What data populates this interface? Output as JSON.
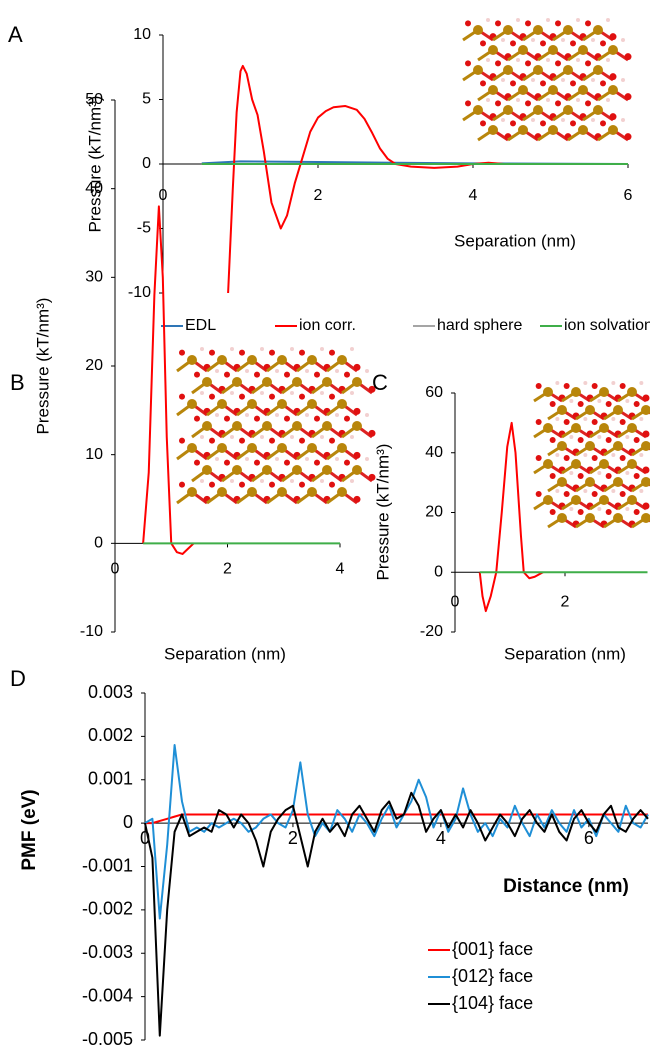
{
  "chart_data": [
    {
      "type": "line",
      "panel_label": "A",
      "ylabel": "Pressure (kT/nm³)",
      "xlabel": "Separation (nm)",
      "xlim": [
        0,
        6
      ],
      "xticks": [
        0,
        2,
        4,
        6
      ],
      "ylim": [
        -10,
        10
      ],
      "yticks": [
        10,
        5,
        0,
        -5,
        -10
      ],
      "series": [
        {
          "name": "EDL",
          "color": "#2e75b6",
          "x": [
            0.5,
            1,
            2,
            3,
            4,
            6
          ],
          "values": [
            0.05,
            0.2,
            0.15,
            0.1,
            0.05,
            0
          ]
        },
        {
          "name": "ion corr.",
          "color": "#ff0000",
          "x": [
            0.84,
            0.9,
            0.95,
            1.0,
            1.03,
            1.08,
            1.15,
            1.22,
            1.3,
            1.4,
            1.52,
            1.6,
            1.7,
            1.8,
            1.9,
            2.0,
            2.1,
            2.2,
            2.35,
            2.5,
            2.6,
            2.7,
            2.8,
            2.9,
            3.0,
            3.2,
            3.5,
            3.8,
            4.0,
            4.2,
            4.4,
            5,
            6
          ],
          "values": [
            -10,
            -2,
            4,
            7.2,
            7.6,
            7,
            5,
            3.8,
            1,
            -3,
            -5,
            -4,
            -1.5,
            0.5,
            2.5,
            3.6,
            4.1,
            4.4,
            4.5,
            4.2,
            3.5,
            2.4,
            1.2,
            0.4,
            0,
            -0.2,
            -0.3,
            -0.2,
            0,
            0.1,
            0,
            0,
            0
          ]
        },
        {
          "name": "hard sphere",
          "color": "#a5a5a5",
          "x": [
            0.5,
            6
          ],
          "values": [
            0,
            0
          ]
        },
        {
          "name": "ion solvation",
          "color": "#3fae49",
          "x": [
            0.5,
            6
          ],
          "values": [
            0,
            0
          ]
        }
      ]
    },
    {
      "type": "line",
      "panel_label": "B",
      "ylabel": "Pressure (kT/nm³)",
      "xlabel": "Separation (nm)",
      "xlim": [
        0,
        4
      ],
      "xticks": [
        0,
        2,
        4
      ],
      "ylim": [
        -10,
        50
      ],
      "yticks": [
        50,
        40,
        30,
        20,
        10,
        0,
        -10
      ],
      "series": [
        {
          "color": "#ff0000",
          "x": [
            0.5,
            0.6,
            0.7,
            0.78,
            0.85,
            0.92,
            1.0,
            1.1,
            1.2,
            1.3,
            1.4
          ],
          "values": [
            0,
            8,
            28,
            38,
            30,
            12,
            0,
            -1,
            -1.2,
            -0.6,
            0
          ]
        },
        {
          "color": "#3fae49",
          "x": [
            0.5,
            4
          ],
          "values": [
            0,
            0
          ]
        }
      ]
    },
    {
      "type": "line",
      "panel_label": "C",
      "ylabel": "Pressure (kT/nm³)",
      "xlabel": "Separation (nm)",
      "xlim": [
        0,
        3.5
      ],
      "xticks": [
        0,
        2
      ],
      "ylim": [
        -20,
        60
      ],
      "yticks": [
        60,
        40,
        20,
        0,
        -20
      ],
      "series": [
        {
          "color": "#ff0000",
          "x": [
            0.45,
            0.5,
            0.56,
            0.65,
            0.75,
            0.85,
            0.95,
            1.03,
            1.1,
            1.2,
            1.25,
            1.35,
            1.45,
            1.6
          ],
          "values": [
            0,
            -8,
            -13,
            -8,
            0,
            20,
            42,
            50,
            40,
            12,
            0,
            -2,
            -1.5,
            0
          ]
        },
        {
          "color": "#3fae49",
          "x": [
            0.45,
            3.5
          ],
          "values": [
            0,
            0
          ]
        }
      ]
    },
    {
      "type": "line",
      "panel_label": "D",
      "ylabel": "PMF (eV)",
      "xlabel": "Distance (nm)",
      "xlim": [
        0,
        6.8
      ],
      "xticks": [
        0,
        2,
        4,
        6
      ],
      "ylim": [
        -0.005,
        0.003
      ],
      "yticks": [
        0.003,
        0.002,
        0.001,
        0,
        -0.001,
        -0.002,
        -0.003,
        -0.004,
        -0.005
      ],
      "x": [
        0,
        0.1,
        0.2,
        0.3,
        0.4,
        0.5,
        0.6,
        0.7,
        0.8,
        0.9,
        1.0,
        1.1,
        1.2,
        1.3,
        1.4,
        1.5,
        1.6,
        1.7,
        1.8,
        1.9,
        2.0,
        2.1,
        2.2,
        2.3,
        2.4,
        2.5,
        2.6,
        2.7,
        2.8,
        2.9,
        3.0,
        3.1,
        3.2,
        3.3,
        3.4,
        3.5,
        3.6,
        3.7,
        3.8,
        3.9,
        4.0,
        4.1,
        4.2,
        4.3,
        4.4,
        4.5,
        4.6,
        4.7,
        4.8,
        4.9,
        5.0,
        5.1,
        5.2,
        5.3,
        5.4,
        5.5,
        5.6,
        5.7,
        5.8,
        5.9,
        6.0,
        6.1,
        6.2,
        6.3,
        6.4,
        6.5,
        6.6,
        6.7,
        6.8
      ],
      "series": [
        {
          "name": "{001} face",
          "color": "#ff0000",
          "values": [
            0,
            0,
            5e-05,
            0.0001,
            0.00015,
            0.0002,
            0.0002,
            0.0002,
            0.0002,
            0.0002,
            0.0002,
            0.0002,
            0.0002,
            0.0002,
            0.0002,
            0.0002,
            0.0002,
            0.0002,
            0.0002,
            0.0002,
            0.0002,
            0.0002,
            0.0002,
            0.0002,
            0.0002,
            0.0002,
            0.0002,
            0.0002,
            0.0002,
            0.0002,
            0.0002,
            0.0002,
            0.0002,
            0.0002,
            0.0002,
            0.0002,
            0.0002,
            0.0002,
            0.0002,
            0.0002,
            0.0002,
            0.0002,
            0.0002,
            0.0002,
            0.0002,
            0.0002,
            0.0002,
            0.0002,
            0.0002,
            0.0002,
            0.0002,
            0.0002,
            0.0002,
            0.0002,
            0.0002,
            0.0002,
            0.0002,
            0.0002,
            0.0002,
            0.0002,
            0.0002,
            0.0002,
            0.0002,
            0.0002,
            0.0002,
            0.0002,
            0.0002,
            0.0002,
            0.0002
          ]
        },
        {
          "name": "{012} face",
          "color": "#1f8fd6",
          "values": [
            0,
            0.0001,
            -0.0022,
            -0.0005,
            0.0018,
            0.0005,
            -0.0002,
            -0.0001,
            -0.0002,
            0,
            -0.0001,
            0,
            0.0001,
            0,
            -0.0002,
            -0.0001,
            0.0001,
            0.0002,
            0,
            -0.0001,
            0.0003,
            0.0014,
            0.0002,
            -0.0003,
            0,
            -0.0002,
            0.0003,
            0.0001,
            -0.0002,
            0.0002,
            0,
            -0.0003,
            0.0001,
            0.0004,
            -0.0001,
            0.0002,
            0.0005,
            0.001,
            0.0006,
            -0.0001,
            0.0003,
            -0.0002,
            0.0001,
            0.0008,
            0.0002,
            -0.0002,
            0,
            -0.0003,
            0.0001,
            -0.0001,
            0.0004,
            0,
            -0.0003,
            0.0002,
            -0.0001,
            0.0003,
            0,
            -0.0002,
            0.0003,
            -0.0001,
            0.0001,
            -0.0003,
            0.0002,
            0,
            -0.0002,
            0.0004,
            0,
            -0.0001,
            0.0002
          ]
        },
        {
          "name": "{104} face",
          "color": "#000000",
          "values": [
            0,
            -0.0008,
            -0.0049,
            -0.002,
            -0.0002,
            0.0002,
            -0.0003,
            -0.0002,
            -0.0001,
            -0.0002,
            0.0003,
            0.0002,
            -0.0001,
            0.0002,
            0,
            -0.0004,
            -0.001,
            -0.0002,
            0.0001,
            0.0003,
            0.0004,
            -0.0003,
            -0.001,
            -0.0002,
            0.0001,
            -0.0002,
            0,
            -0.0003,
            0.0002,
            0.0004,
            0.0001,
            -0.0002,
            0.0003,
            0.0005,
            0.0001,
            0.0002,
            0.0007,
            0.0004,
            -0.0002,
            0.0001,
            0.0003,
            -0.0001,
            0.0002,
            -0.0001,
            0.0003,
            0,
            -0.0004,
            -0.0001,
            0.0002,
            0,
            -0.0003,
            0.0001,
            0.0003,
            0,
            -0.0002,
            0.0002,
            -0.0002,
            -0.0004,
            0.0001,
            0.0003,
            0,
            -0.0002,
            0.0002,
            0.0004,
            -0.0001,
            -0.0002,
            0.0001,
            0.0003,
            0.0001
          ]
        }
      ]
    }
  ]
}
